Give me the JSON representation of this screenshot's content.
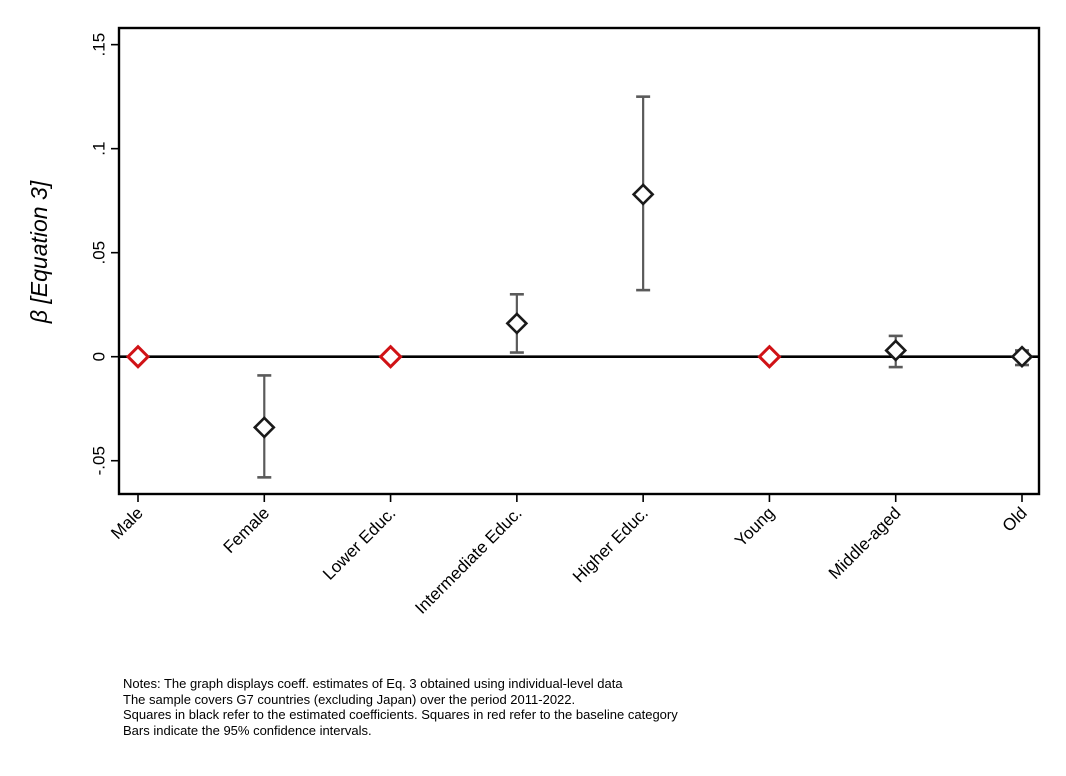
{
  "figure": {
    "kind": "coefficient-plot"
  },
  "chart_data": {
    "type": "scatter",
    "subtype": "coefficient-plot-with-error-bars",
    "title": "",
    "xlabel": "",
    "ylabel": "β [Equation 3]",
    "categories": [
      "Male",
      "Female",
      "Lower Educ.",
      "Intermediate Educ.",
      "Higher Educ.",
      "Young",
      "Middle-aged",
      "Old"
    ],
    "points": [
      {
        "label": "Male",
        "value": 0.0,
        "ci_low": null,
        "ci_high": null,
        "type": "baseline"
      },
      {
        "label": "Female",
        "value": -0.034,
        "ci_low": -0.058,
        "ci_high": -0.009,
        "type": "coefficient"
      },
      {
        "label": "Lower Educ.",
        "value": 0.0,
        "ci_low": null,
        "ci_high": null,
        "type": "baseline"
      },
      {
        "label": "Intermediate Educ.",
        "value": 0.016,
        "ci_low": 0.002,
        "ci_high": 0.03,
        "type": "coefficient"
      },
      {
        "label": "Higher Educ.",
        "value": 0.078,
        "ci_low": 0.032,
        "ci_high": 0.125,
        "type": "coefficient"
      },
      {
        "label": "Young",
        "value": 0.0,
        "ci_low": null,
        "ci_high": null,
        "type": "baseline"
      },
      {
        "label": "Middle-aged",
        "value": 0.003,
        "ci_low": -0.005,
        "ci_high": 0.01,
        "type": "coefficient"
      },
      {
        "label": "Old",
        "value": 0.0,
        "ci_low": -0.004,
        "ci_high": 0.003,
        "type": "coefficient"
      }
    ],
    "yticks": [
      -0.05,
      0,
      0.05,
      0.1,
      0.15
    ],
    "ytick_labels": [
      "-.05",
      "0",
      ".05",
      ".1",
      ".15"
    ],
    "ylim": [
      -0.066,
      0.158
    ],
    "zero_line": 0,
    "grid": false,
    "legend": "none",
    "marker_shape": "diamond-hollow",
    "colors": {
      "coefficient_marker": "#1a1a1a",
      "baseline_marker": "#d01216",
      "ci_bar": "#5a5a5a",
      "zero_line": "#000000",
      "frame": "#000000"
    }
  },
  "notes": {
    "lines": [
      "Notes: The graph displays coeff. estimates of Eq. 3 obtained using individual-level data",
      "The sample covers G7 countries (excluding Japan) over the period 2011-2022.",
      "Squares in black refer to the estimated coefficients. Squares in red refer to the baseline category",
      "Bars indicate the 95% confidence intervals."
    ]
  }
}
